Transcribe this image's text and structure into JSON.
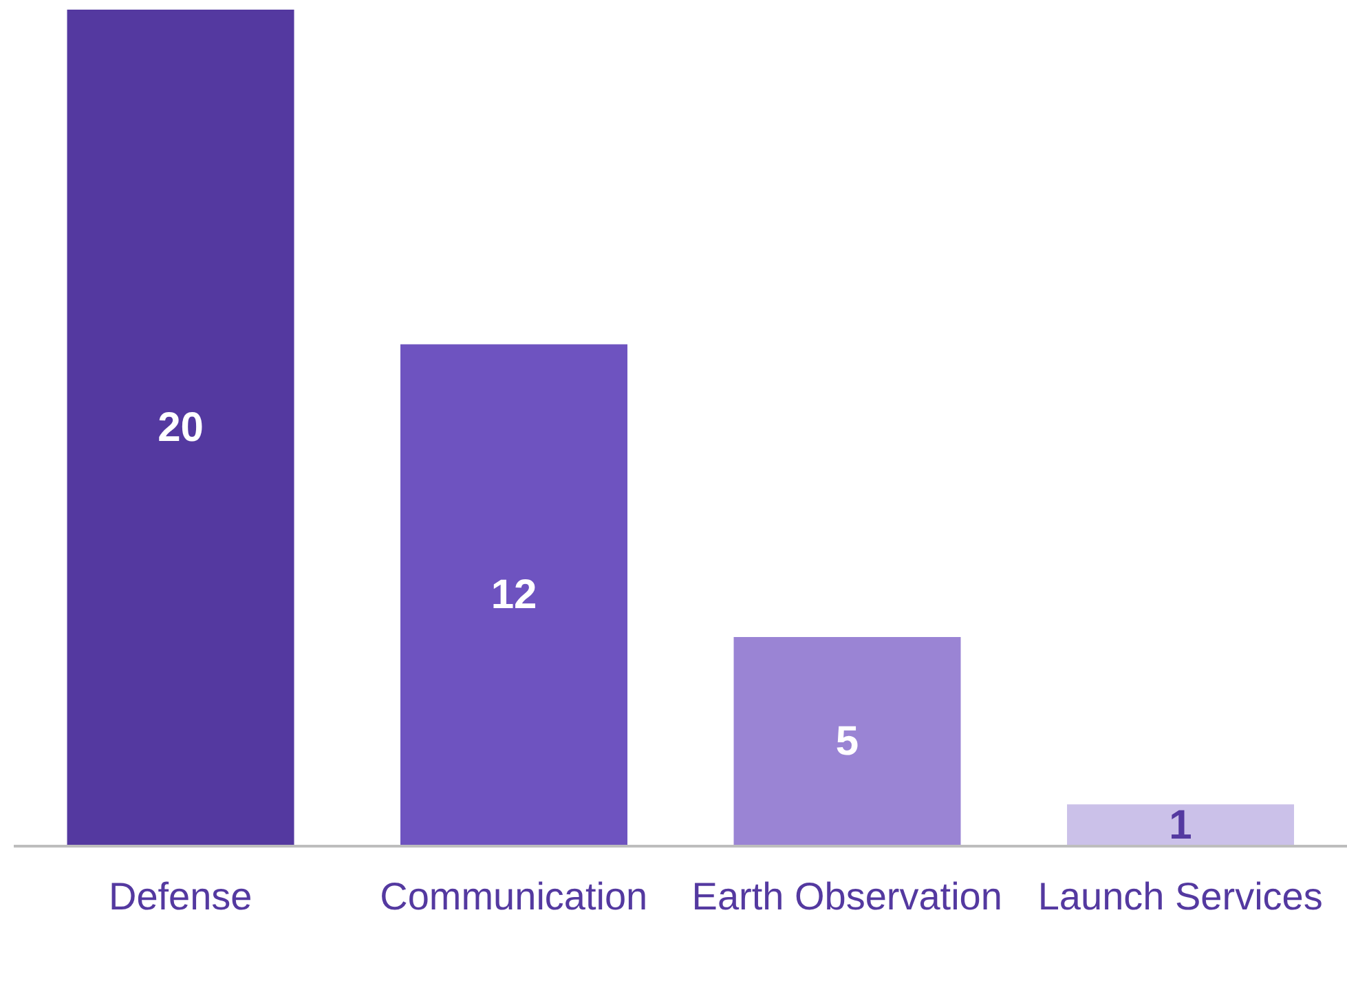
{
  "chart_data": {
    "type": "bar",
    "categories": [
      "Defense",
      "Communication",
      "Earth Observation",
      "Launch Services"
    ],
    "values": [
      20,
      12,
      5,
      1
    ],
    "colors": [
      "#5439a0",
      "#6e53c0",
      "#9a84d4",
      "#cbc1e9"
    ],
    "data_labels": true
  }
}
